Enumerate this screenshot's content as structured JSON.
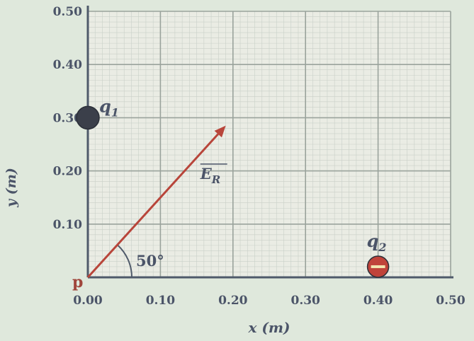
{
  "chart_data": {
    "type": "diagram",
    "xlabel": "x (m)",
    "ylabel": "y (m)",
    "xlim": [
      0.0,
      0.5
    ],
    "ylim": [
      0.0,
      0.5
    ],
    "x_ticks": [
      "0.00",
      "0.10",
      "0.20",
      "0.30",
      "0.40",
      "0.50"
    ],
    "y_ticks": [
      "0.10",
      "0.20",
      "0.30",
      "0.40",
      "0.50"
    ],
    "grid": true,
    "charges": [
      {
        "name": "q1",
        "label_main": "q",
        "label_sub": "1",
        "x": 0.0,
        "y": 0.3,
        "color": "#3b3f4a"
      },
      {
        "name": "q2",
        "label_main": "q",
        "label_sub": "2",
        "x": 0.4,
        "y": 0.02,
        "color": "#c0433a"
      }
    ],
    "vector": {
      "label_main": "E",
      "label_sub": "R",
      "from": [
        0.0,
        0.0
      ],
      "to": [
        0.19,
        0.285
      ],
      "color": "#b8453a"
    },
    "angle_label": "50°",
    "point_label": "p"
  },
  "colors": {
    "background": "#dfe8dc",
    "grid_area": "#eaece4",
    "minor_grid": "#c9d0c8",
    "major_grid": "#9aa39c",
    "axis": "#4f5a6a",
    "text": "#4b5468"
  }
}
